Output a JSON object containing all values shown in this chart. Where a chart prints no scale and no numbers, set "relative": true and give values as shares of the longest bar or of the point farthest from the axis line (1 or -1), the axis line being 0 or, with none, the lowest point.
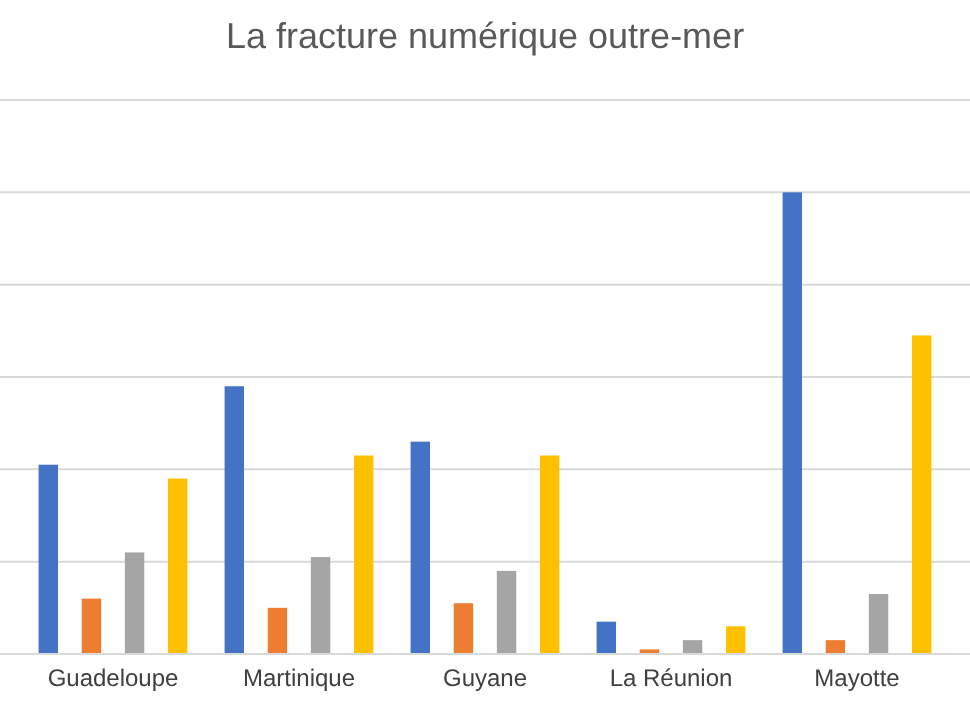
{
  "chart_data": {
    "type": "bar",
    "title": "La fracture numérique outre-mer",
    "relative": true,
    "grid": true,
    "categories": [
      "Guadeloupe",
      "Martinique",
      "Guyane",
      "La Réunion",
      "Mayotte"
    ],
    "series": [
      {
        "color": "#4472c4",
        "values": [
          0.41,
          0.58,
          0.46,
          0.07,
          1
        ]
      },
      {
        "color": "#ed7d31",
        "values": [
          0.12,
          0.1,
          0.11,
          0.01,
          0.03
        ]
      },
      {
        "color": "#a5a5a5",
        "values": [
          0.22,
          0.21,
          0.18,
          0.03,
          0.13
        ]
      },
      {
        "color": "#ffc000",
        "values": [
          0.38,
          0.43,
          0.43,
          0.06,
          0.69
        ]
      }
    ]
  }
}
